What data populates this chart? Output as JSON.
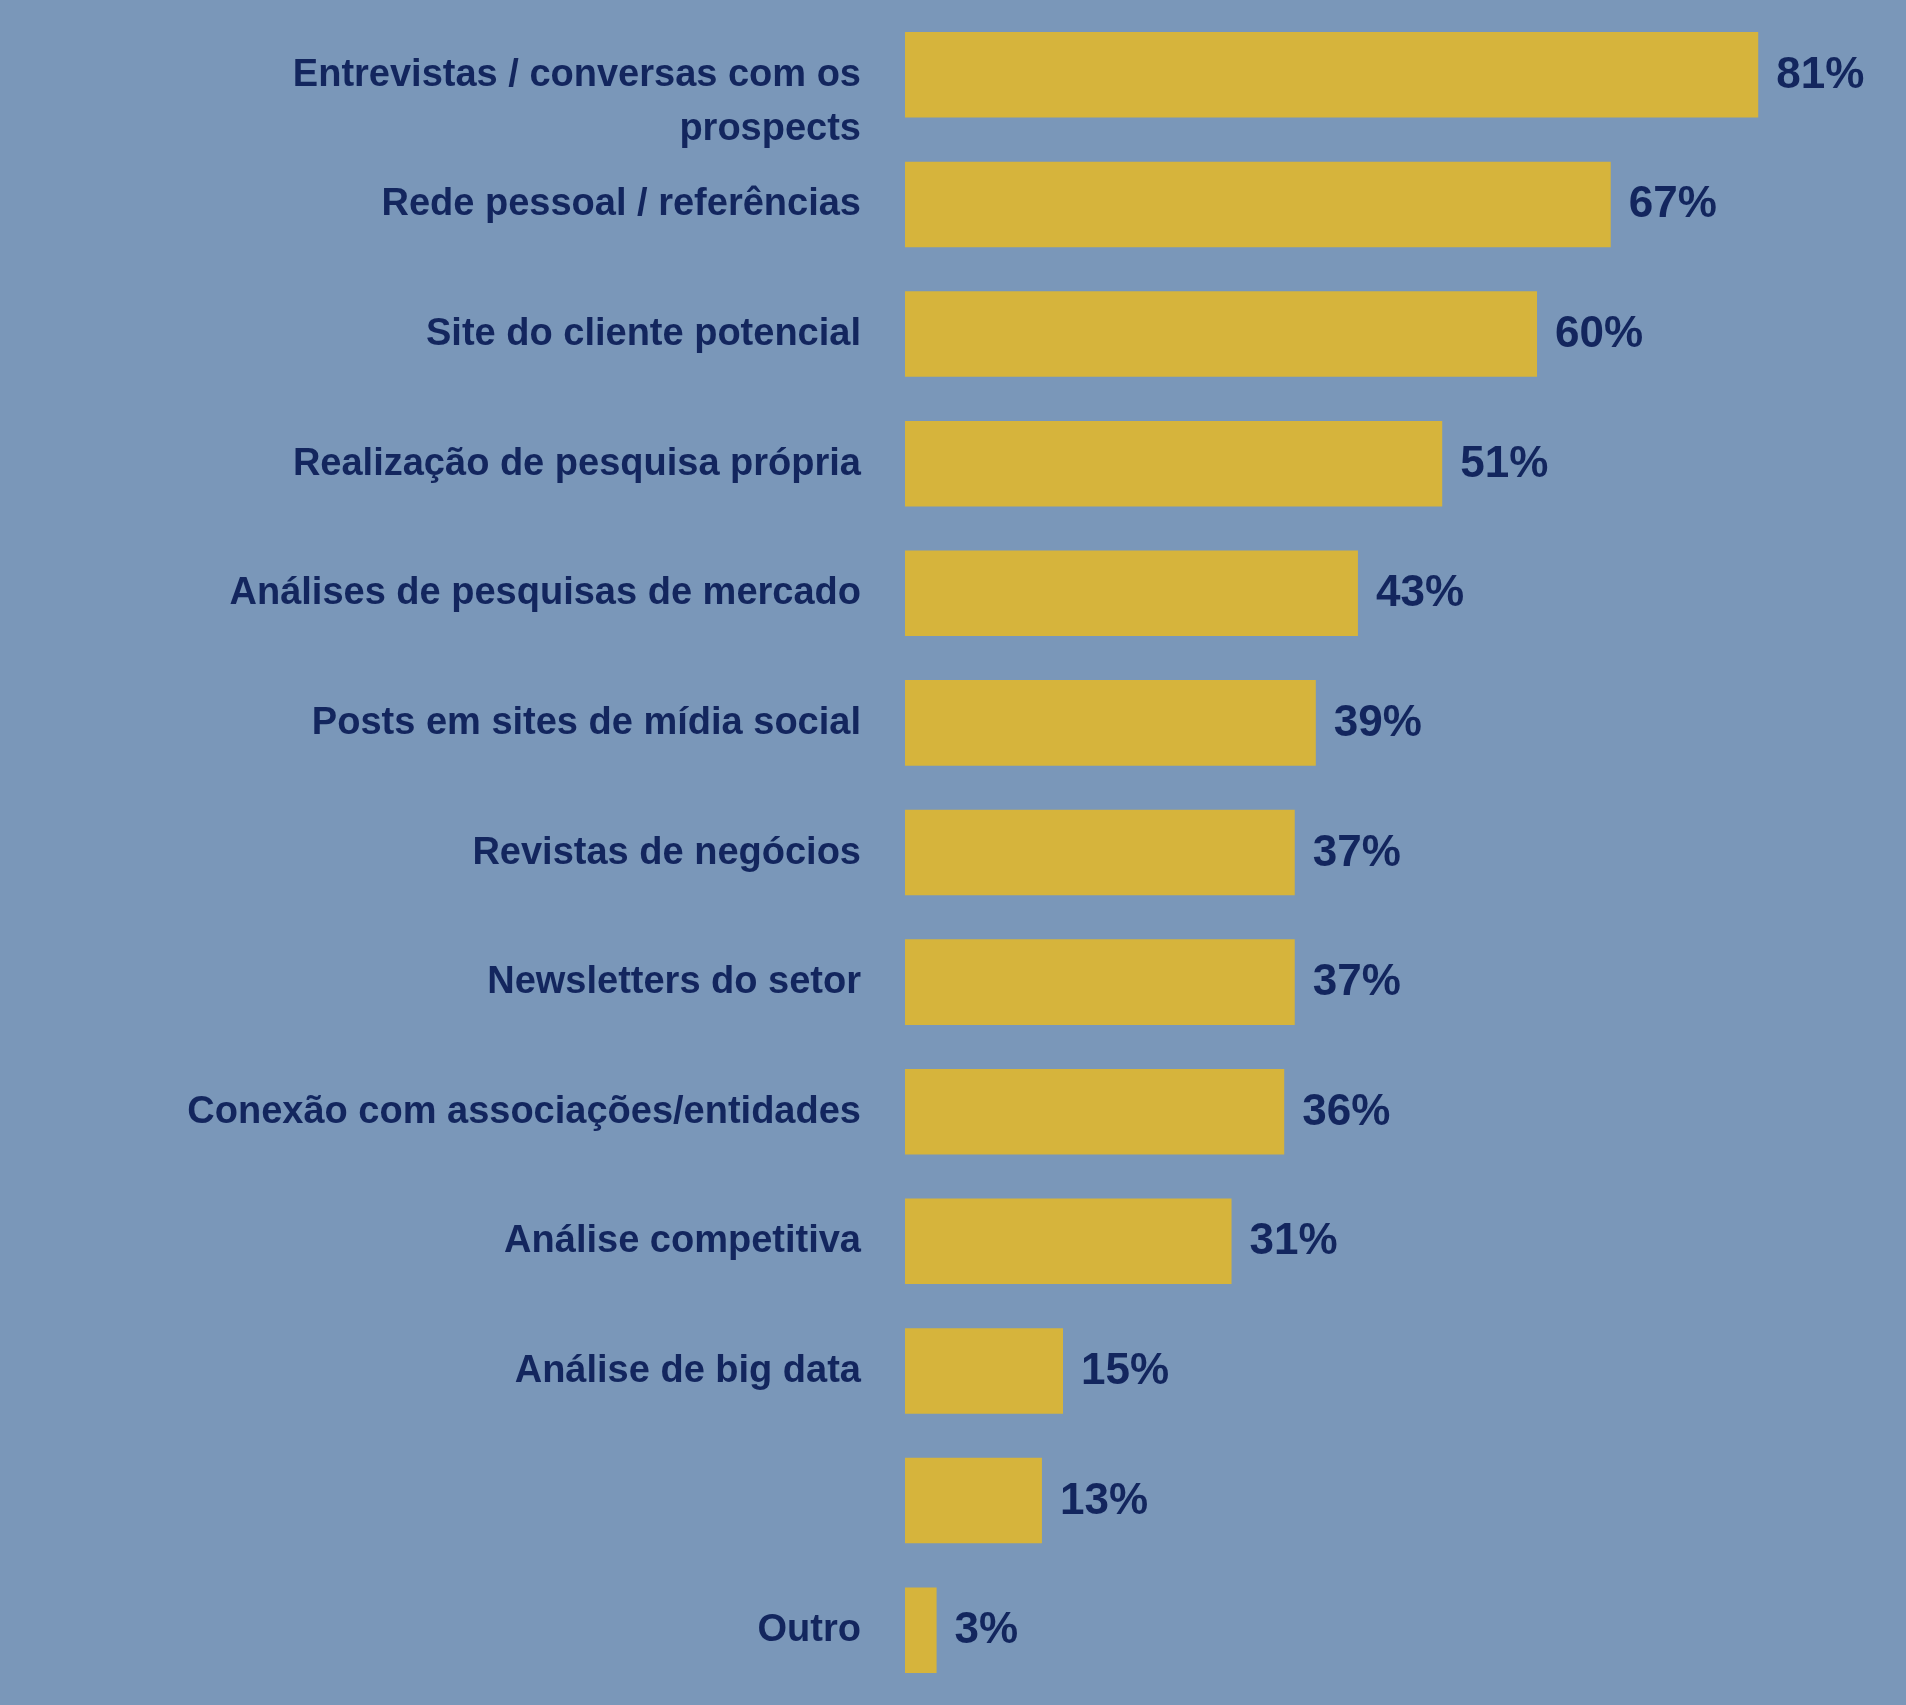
{
  "chart_data": {
    "type": "bar",
    "orientation": "horizontal",
    "categories": [
      "Entrevistas / conversas com os prospects",
      "Rede pessoal / referências",
      "Site do cliente potencial",
      "Realização de pesquisa própria",
      "Análises de pesquisas de mercado",
      "Posts em sites de mídia social",
      "Revistas de negócios",
      "Newsletters do setor",
      "Conexão com associações/entidades",
      "Análise competitiva",
      "Análise de big data",
      null,
      "Outro"
    ],
    "values": [
      81,
      67,
      60,
      51,
      43,
      39,
      37,
      37,
      36,
      31,
      15,
      13,
      3
    ],
    "value_labels": [
      "81%",
      "67%",
      "60%",
      "51%",
      "43%",
      "39%",
      "37%",
      "37%",
      "36%",
      "31%",
      "15%",
      "13%",
      "3%"
    ],
    "color": "#d6b43c"
  }
}
